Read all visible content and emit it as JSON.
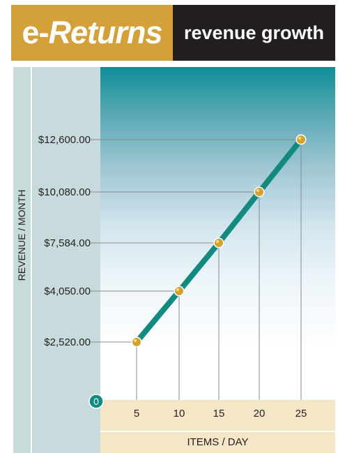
{
  "header": {
    "brand_prefix": "e-",
    "brand_name": "Returns",
    "subtitle": "revenue growth"
  },
  "colors": {
    "brand_gold": "#d3a03a",
    "header_dark": "#231f20",
    "line_teal": "#138a80",
    "marker_gold": "#d4a22e",
    "axis_strip": "#f5e6c8",
    "left_panel": "#c7dbdc"
  },
  "chart_data": {
    "type": "line",
    "title": "revenue growth",
    "xlabel": "ITEMS / DAY",
    "ylabel": "REVENUE / MONTH",
    "origin_label": "0",
    "x": [
      5,
      10,
      15,
      20,
      25
    ],
    "series": [
      {
        "values": [
          2520,
          4050,
          7584,
          10080,
          12600
        ]
      }
    ],
    "y_tick_labels": [
      "$2,520.00",
      "$4,050.00",
      "$7,584.00",
      "$10,080.00",
      "$12,600.00"
    ],
    "x_tick_labels": [
      "5",
      "10",
      "15",
      "20",
      "25"
    ],
    "grid": true
  }
}
